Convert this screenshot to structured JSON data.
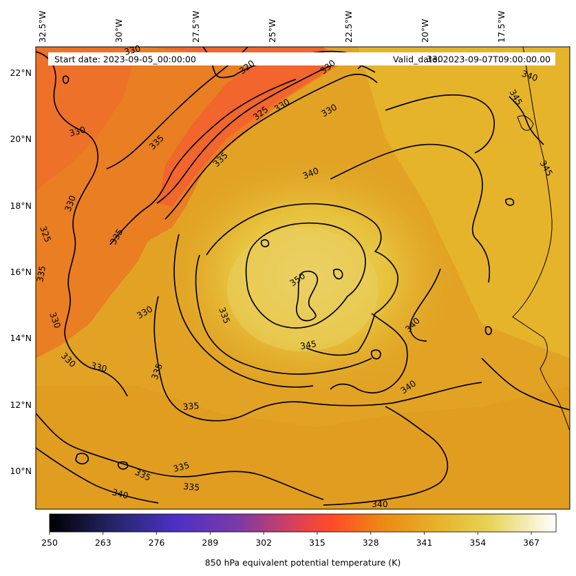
{
  "header": {
    "start_date": "Start date: 2023-09-05_00:00:00",
    "valid_date": "Valid_date: 2023-09-07T09:00:00.00"
  },
  "map": {
    "lon_labels": [
      "32.5°W",
      "30°W",
      "27.5°W",
      "25°W",
      "22.5°W",
      "20°W",
      "17.5°W"
    ],
    "lat_labels": [
      "22°N",
      "20°N",
      "18°N",
      "16°N",
      "14°N",
      "12°N",
      "10°N"
    ],
    "contour_labels": [
      "320",
      "325",
      "330",
      "330",
      "330",
      "335",
      "335",
      "340",
      "340",
      "340",
      "340",
      "345",
      "345",
      "345",
      "350",
      "330",
      "330",
      "330",
      "330",
      "330",
      "335",
      "335",
      "335",
      "335",
      "335",
      "335",
      "340",
      "340",
      "335",
      "325",
      "330",
      "330",
      "335",
      "330"
    ],
    "colors": {
      "background_field": "#e3a022",
      "warm_core": "#e8c640",
      "dry_tongue": "#f06a2a",
      "contour_line": "#000000",
      "coastline": "#000000"
    }
  },
  "colorbar": {
    "label": "850 hPa equivalent potential temperature (K)",
    "ticks": [
      "250",
      "263",
      "276",
      "289",
      "302",
      "315",
      "328",
      "341",
      "354",
      "367"
    ],
    "range": [
      250,
      373
    ],
    "colormap": "CMRmap"
  }
}
